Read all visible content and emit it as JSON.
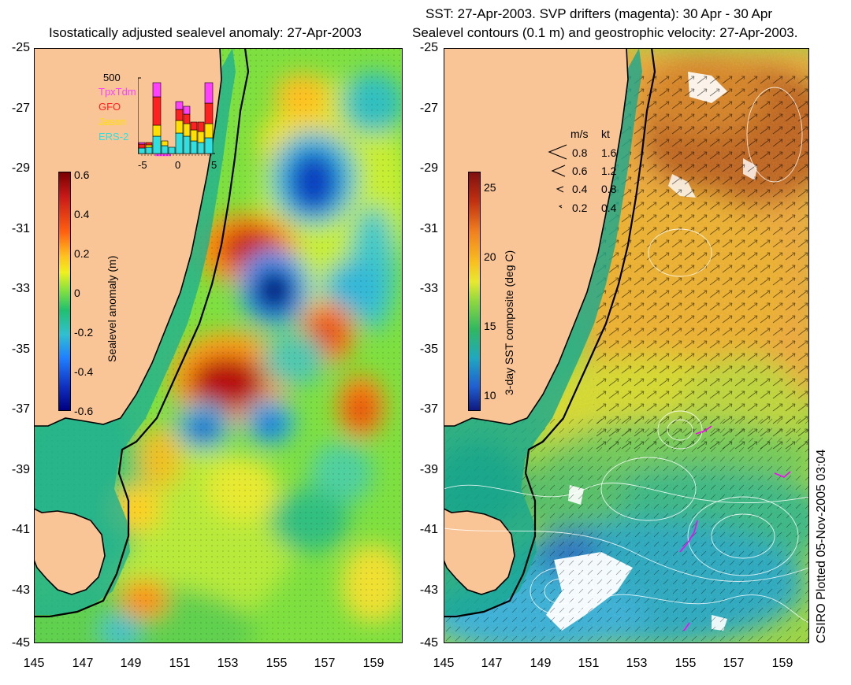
{
  "left_panel": {
    "title": "Isostatically adjusted sealevel anomaly: 27-Apr-2003",
    "y_ticks": [
      "-25",
      "-27",
      "-29",
      "-31",
      "-33",
      "-35",
      "-37",
      "-39",
      "-41",
      "-43",
      "-45"
    ],
    "x_ticks": [
      "145",
      "147",
      "149",
      "151",
      "153",
      "155",
      "157",
      "159"
    ],
    "colorbar": {
      "title": "Sealevel anomaly (m)",
      "ticks": [
        "0.6",
        "0.4",
        "0.2",
        "0",
        "-0.2",
        "-0.4",
        "-0.6"
      ],
      "range": [
        -0.6,
        0.6
      ]
    },
    "histogram": {
      "count_label": "500",
      "legend": [
        {
          "name": "TpxTdm",
          "color": "#ff40ff"
        },
        {
          "name": "GFO",
          "color": "#ff2020"
        },
        {
          "name": "Jason",
          "color": "#ffe000"
        },
        {
          "name": "ERS-2",
          "color": "#30e0e0"
        }
      ],
      "x_ticks": [
        "-5",
        "0",
        "5"
      ]
    }
  },
  "right_panel": {
    "title_line1": "SST: 27-Apr-2003. SVP drifters (magenta): 30 Apr - 30 Apr",
    "title_line2": "Sealevel contours (0.1 m) and geostrophic velocity: 27-Apr-2003.",
    "y_ticks": [
      "-25",
      "-27",
      "-29",
      "-31",
      "-33",
      "-35",
      "-37",
      "-39",
      "-41",
      "-43",
      "-45"
    ],
    "x_ticks": [
      "145",
      "147",
      "149",
      "151",
      "153",
      "155",
      "157",
      "159"
    ],
    "colorbar": {
      "title": "3-day SST composite (deg C)",
      "ticks": [
        "25",
        "20",
        "15",
        "10"
      ],
      "range": [
        9,
        26
      ]
    },
    "speed_legend": {
      "header_ms": "m/s",
      "header_kt": "kt",
      "rows": [
        {
          "ms": "0.8",
          "kt": "1.6"
        },
        {
          "ms": "0.6",
          "kt": "1.2"
        },
        {
          "ms": "0.4",
          "kt": "0.8"
        },
        {
          "ms": "0.2",
          "kt": "0.4"
        }
      ]
    }
  },
  "credit": "CSIRO Plotted 05-Nov-2005 03:04",
  "colors": {
    "land": "#f9c596",
    "coastline": "#000000",
    "contour": "#ffffff",
    "drifter": "#ff00ff"
  }
}
